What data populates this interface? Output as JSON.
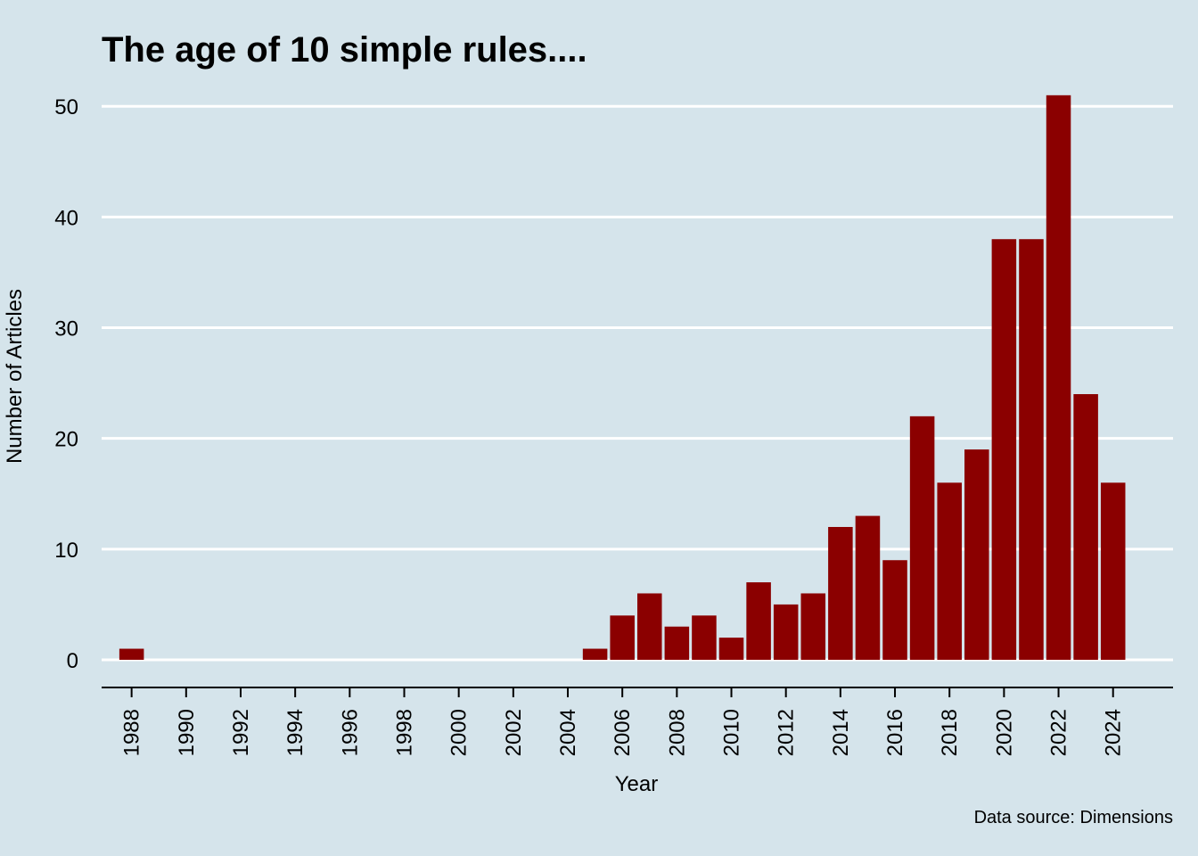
{
  "chart_data": {
    "type": "bar",
    "title": "The age of 10 simple rules....",
    "xlabel": "Year",
    "ylabel": "Number of Articles",
    "caption": "Data source: Dimensions",
    "x": [
      1988,
      2005,
      2006,
      2007,
      2008,
      2009,
      2010,
      2011,
      2012,
      2013,
      2014,
      2015,
      2016,
      2017,
      2018,
      2019,
      2020,
      2021,
      2022,
      2023,
      2024
    ],
    "values": [
      1,
      1,
      4,
      6,
      3,
      4,
      2,
      7,
      5,
      6,
      12,
      13,
      9,
      22,
      16,
      19,
      38,
      38,
      51,
      24,
      16
    ],
    "xticks": [
      "1988",
      "1990",
      "1992",
      "1994",
      "1996",
      "1998",
      "2000",
      "2002",
      "2004",
      "2006",
      "2008",
      "2010",
      "2012",
      "2014",
      "2016",
      "2018",
      "2020",
      "2022",
      "2024"
    ],
    "yticks": [
      "0",
      "10",
      "20",
      "30",
      "40",
      "50"
    ],
    "xlim": [
      1986.9,
      2026.2
    ],
    "ylim": [
      -2.5,
      53
    ],
    "grid": "horizontal",
    "legend": "none",
    "colors": {
      "bar": "#8b0000",
      "background": "#d5e4eb",
      "grid": "#ffffff",
      "axis": "#000000"
    }
  }
}
